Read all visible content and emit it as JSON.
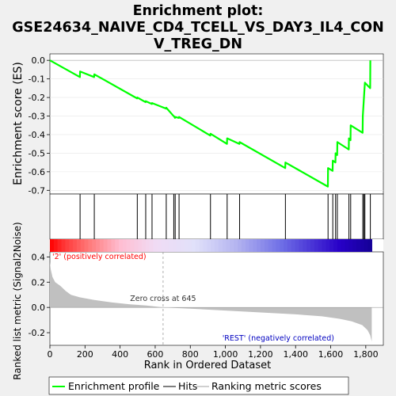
{
  "chart_data": {
    "type": "line",
    "title_line1": "Enrichment plot:",
    "title_line2": "GSE24634_NAIVE_CD4_TCELL_VS_DAY3_IL4_CON",
    "title_line3": "V_TREG_DN",
    "top_ylabel": "Enrichment score (ES)",
    "bottom_ylabel": "Ranked list metric (Signal2Noise)",
    "xlabel": "Rank in Ordered Dataset",
    "es_yticks": [
      "0.0",
      "-0.1",
      "-0.2",
      "-0.3",
      "-0.4",
      "-0.5",
      "-0.6",
      "-0.7"
    ],
    "metric_yticks": [
      "0.4",
      "0.2",
      "0.0",
      "-0.2"
    ],
    "xticks": [
      "0",
      "200",
      "400",
      "600",
      "800",
      "1,000",
      "1,200",
      "1,400",
      "1,600",
      "1,800"
    ],
    "es_ylim": [
      -0.72,
      0.035
    ],
    "metric_ylim": [
      -0.3,
      0.44
    ],
    "xlim": [
      0,
      1900
    ],
    "n_genes": 1834,
    "zero_cross_rank": 645,
    "zero_cross_label": "Zero cross at 645",
    "pos_label": "'2' (positively correlated)",
    "neg_label": "'REST' (negatively correlated)",
    "hits": [
      172,
      253,
      498,
      546,
      582,
      663,
      706,
      714,
      736,
      915,
      1010,
      1081,
      1342,
      1585,
      1612,
      1628,
      1638,
      1704,
      1714,
      1783,
      1789,
      1795,
      1826
    ],
    "es_points": [
      [
        0,
        0.0
      ],
      [
        171,
        -0.09
      ],
      [
        172,
        -0.06
      ],
      [
        252,
        -0.09
      ],
      [
        253,
        -0.075
      ],
      [
        497,
        -0.205
      ],
      [
        498,
        -0.2
      ],
      [
        545,
        -0.225
      ],
      [
        546,
        -0.22
      ],
      [
        581,
        -0.235
      ],
      [
        582,
        -0.23
      ],
      [
        662,
        -0.26
      ],
      [
        663,
        -0.255
      ],
      [
        705,
        -0.3
      ],
      [
        706,
        -0.3
      ],
      [
        713,
        -0.31
      ],
      [
        714,
        -0.305
      ],
      [
        735,
        -0.31
      ],
      [
        736,
        -0.305
      ],
      [
        914,
        -0.405
      ],
      [
        915,
        -0.395
      ],
      [
        1009,
        -0.45
      ],
      [
        1010,
        -0.42
      ],
      [
        1080,
        -0.45
      ],
      [
        1081,
        -0.44
      ],
      [
        1341,
        -0.58
      ],
      [
        1342,
        -0.55
      ],
      [
        1584,
        -0.68
      ],
      [
        1585,
        -0.58
      ],
      [
        1611,
        -0.595
      ],
      [
        1612,
        -0.54
      ],
      [
        1627,
        -0.55
      ],
      [
        1628,
        -0.5
      ],
      [
        1637,
        -0.51
      ],
      [
        1638,
        -0.44
      ],
      [
        1703,
        -0.48
      ],
      [
        1704,
        -0.42
      ],
      [
        1713,
        -0.43
      ],
      [
        1714,
        -0.35
      ],
      [
        1782,
        -0.39
      ],
      [
        1783,
        -0.3
      ],
      [
        1789,
        -0.21
      ],
      [
        1795,
        -0.12
      ],
      [
        1825,
        -0.15
      ],
      [
        1826,
        0.0
      ]
    ],
    "metric_profile": [
      [
        0,
        0.36
      ],
      [
        5,
        0.3
      ],
      [
        15,
        0.24
      ],
      [
        30,
        0.2
      ],
      [
        60,
        0.17
      ],
      [
        90,
        0.13
      ],
      [
        120,
        0.1
      ],
      [
        170,
        0.08
      ],
      [
        250,
        0.06
      ],
      [
        350,
        0.04
      ],
      [
        450,
        0.025
      ],
      [
        550,
        0.015
      ],
      [
        645,
        0.0
      ],
      [
        800,
        -0.01
      ],
      [
        1000,
        -0.025
      ],
      [
        1200,
        -0.04
      ],
      [
        1400,
        -0.055
      ],
      [
        1550,
        -0.07
      ],
      [
        1650,
        -0.09
      ],
      [
        1720,
        -0.11
      ],
      [
        1780,
        -0.14
      ],
      [
        1810,
        -0.18
      ],
      [
        1825,
        -0.22
      ],
      [
        1834,
        -0.27
      ]
    ],
    "legend": [
      "Enrichment profile",
      "Hits",
      "Ranking metric scores"
    ],
    "colors": {
      "es_line": "#00ff00",
      "hits": "#000000",
      "metric_fill": "#c0c0c0",
      "pos_label": "#ff0000",
      "neg_label": "#0000c0"
    }
  }
}
